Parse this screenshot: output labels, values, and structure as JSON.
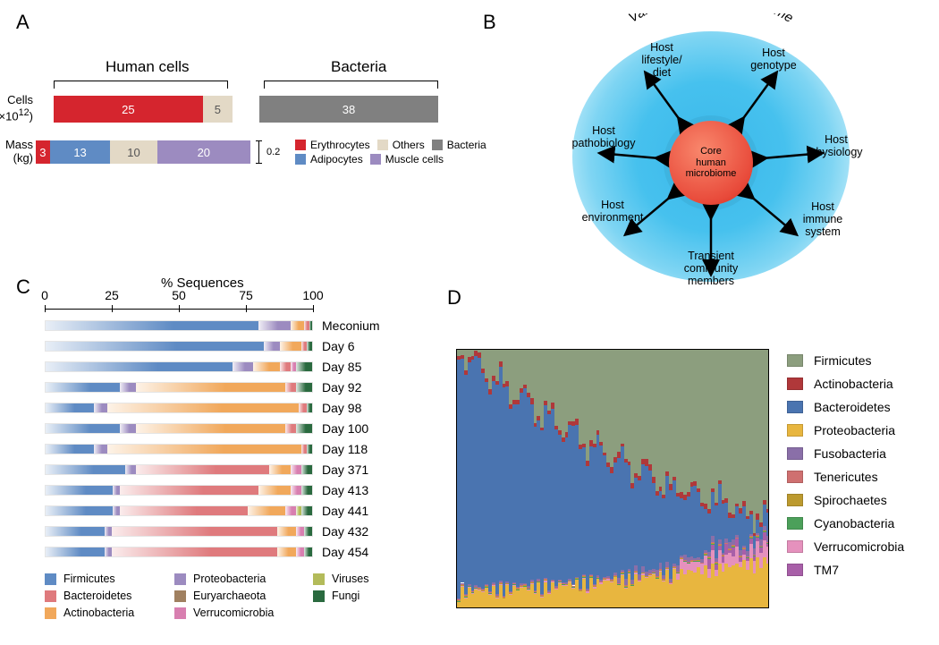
{
  "panels": {
    "A": "A",
    "B": "B",
    "C": "C",
    "D": "D"
  },
  "panelA": {
    "title_human": "Human cells",
    "title_bacteria": "Bacteria",
    "y_cells": "Cells\n(×10¹²)",
    "y_mass": "Mass\n(kg)",
    "cells_bar": {
      "human": [
        {
          "label": "25",
          "value": 25,
          "color": "#d5252e"
        },
        {
          "label": "5",
          "value": 5,
          "color": "#e3d9c6",
          "textcolor": "#555"
        }
      ],
      "bacteria": [
        {
          "label": "38",
          "value": 38,
          "color": "#808080"
        }
      ]
    },
    "mass_bar": {
      "segments": [
        {
          "label": "3",
          "value": 3,
          "color": "#d5252e"
        },
        {
          "label": "13",
          "value": 13,
          "color": "#5f8bc4"
        },
        {
          "label": "10",
          "value": 10,
          "color": "#e3d9c6",
          "textcolor": "#555"
        },
        {
          "label": "20",
          "value": 20,
          "color": "#9c8bc0"
        }
      ],
      "side": "0.2"
    },
    "legend": [
      {
        "label": "Erythrocytes",
        "color": "#d5252e"
      },
      {
        "label": "Others",
        "color": "#e3d9c6"
      },
      {
        "label": "Bacteria",
        "color": "#808080"
      },
      {
        "label": "Adipocytes",
        "color": "#5f8bc4"
      },
      {
        "label": "Muscle cells",
        "color": "#9c8bc0"
      }
    ]
  },
  "panelB": {
    "outer_title": "Variable human microbiome",
    "inner_label": "Core human microbiome",
    "factors": [
      "Host lifestyle/ diet",
      "Host genotype",
      "Host physiology",
      "Host immune system",
      "Transient community members",
      "Host environment",
      "Host pathobiology"
    ]
  },
  "panelC": {
    "axis_title": "% Sequences",
    "ticks": [
      0,
      25,
      50,
      75,
      100
    ],
    "colors": {
      "Firmicutes": "#5f8bc4",
      "Bacteroidetes": "#df7a7d",
      "Actinobacteria": "#f1a85b",
      "Proteobacteria": "#9c8bc0",
      "Euryarchaeota": "#a08060",
      "Verrucomicrobia": "#d87fb0",
      "Viruses": "#b3bb5a",
      "Fungi": "#2a6a3f"
    },
    "rows": [
      {
        "label": "Meconium",
        "segs": [
          [
            "Firmicutes",
            80
          ],
          [
            "Proteobacteria",
            12
          ],
          [
            "Actinobacteria",
            5
          ],
          [
            "Bacteroidetes",
            2
          ],
          [
            "Fungi",
            1
          ]
        ]
      },
      {
        "label": "Day 6",
        "segs": [
          [
            "Firmicutes",
            82
          ],
          [
            "Proteobacteria",
            6
          ],
          [
            "Actinobacteria",
            8
          ],
          [
            "Bacteroidetes",
            2
          ],
          [
            "Fungi",
            2
          ]
        ]
      },
      {
        "label": "Day 85",
        "segs": [
          [
            "Firmicutes",
            70
          ],
          [
            "Proteobacteria",
            8
          ],
          [
            "Actinobacteria",
            10
          ],
          [
            "Bacteroidetes",
            4
          ],
          [
            "Verrucomicrobia",
            2
          ],
          [
            "Fungi",
            6
          ]
        ]
      },
      {
        "label": "Day 92",
        "segs": [
          [
            "Firmicutes",
            28
          ],
          [
            "Proteobacteria",
            6
          ],
          [
            "Actinobacteria",
            56
          ],
          [
            "Bacteroidetes",
            4
          ],
          [
            "Fungi",
            6
          ]
        ]
      },
      {
        "label": "Day 98",
        "segs": [
          [
            "Firmicutes",
            18
          ],
          [
            "Proteobacteria",
            5
          ],
          [
            "Actinobacteria",
            72
          ],
          [
            "Bacteroidetes",
            3
          ],
          [
            "Fungi",
            2
          ]
        ]
      },
      {
        "label": "Day 100",
        "segs": [
          [
            "Firmicutes",
            28
          ],
          [
            "Proteobacteria",
            6
          ],
          [
            "Actinobacteria",
            56
          ],
          [
            "Bacteroidetes",
            4
          ],
          [
            "Fungi",
            6
          ]
        ]
      },
      {
        "label": "Day 118",
        "segs": [
          [
            "Firmicutes",
            18
          ],
          [
            "Proteobacteria",
            5
          ],
          [
            "Actinobacteria",
            73
          ],
          [
            "Bacteroidetes",
            2
          ],
          [
            "Fungi",
            2
          ]
        ]
      },
      {
        "label": "Day 371",
        "segs": [
          [
            "Firmicutes",
            30
          ],
          [
            "Proteobacteria",
            4
          ],
          [
            "Bacteroidetes",
            50
          ],
          [
            "Actinobacteria",
            8
          ],
          [
            "Verrucomicrobia",
            4
          ],
          [
            "Fungi",
            4
          ]
        ]
      },
      {
        "label": "Day 413",
        "segs": [
          [
            "Firmicutes",
            25
          ],
          [
            "Proteobacteria",
            3
          ],
          [
            "Bacteroidetes",
            52
          ],
          [
            "Actinobacteria",
            12
          ],
          [
            "Verrucomicrobia",
            4
          ],
          [
            "Fungi",
            4
          ]
        ]
      },
      {
        "label": "Day 441",
        "segs": [
          [
            "Firmicutes",
            25
          ],
          [
            "Proteobacteria",
            3
          ],
          [
            "Bacteroidetes",
            48
          ],
          [
            "Actinobacteria",
            14
          ],
          [
            "Verrucomicrobia",
            4
          ],
          [
            "Viruses",
            2
          ],
          [
            "Fungi",
            4
          ]
        ]
      },
      {
        "label": "Day 432",
        "segs": [
          [
            "Firmicutes",
            22
          ],
          [
            "Proteobacteria",
            3
          ],
          [
            "Bacteroidetes",
            62
          ],
          [
            "Actinobacteria",
            7
          ],
          [
            "Verrucomicrobia",
            3
          ],
          [
            "Fungi",
            3
          ]
        ]
      },
      {
        "label": "Day 454",
        "segs": [
          [
            "Firmicutes",
            22
          ],
          [
            "Proteobacteria",
            3
          ],
          [
            "Bacteroidetes",
            62
          ],
          [
            "Actinobacteria",
            7
          ],
          [
            "Verrucomicrobia",
            3
          ],
          [
            "Fungi",
            3
          ]
        ]
      }
    ],
    "legend_cols": [
      [
        "Firmicutes",
        "Bacteroidetes",
        "Actinobacteria"
      ],
      [
        "Proteobacteria",
        "Euryarchaeota",
        "Verrucomicrobia"
      ],
      [
        "Viruses",
        "Fungi"
      ]
    ]
  },
  "panelD": {
    "colors": {
      "Firmicutes": "#8c9e7e",
      "Actinobacteria": "#b0383a",
      "Bacteroidetes": "#4a74b0",
      "Proteobacteria": "#e8b63f",
      "Fusobacteria": "#8a6fa8",
      "Tenericutes": "#cf7070",
      "Spirochaetes": "#bc9a2f",
      "Cyanobacteria": "#4ca05a",
      "Verrucomicrobia": "#e591bd",
      "TM7": "#a85fa8"
    },
    "legend": [
      "Firmicutes",
      "Actinobacteria",
      "Bacteroidetes",
      "Proteobacteria",
      "Fusobacteria",
      "Tenericutes",
      "Spirochaetes",
      "Cyanobacteria",
      "Verrucomicrobia",
      "TM7"
    ],
    "n_samples": 90
  }
}
